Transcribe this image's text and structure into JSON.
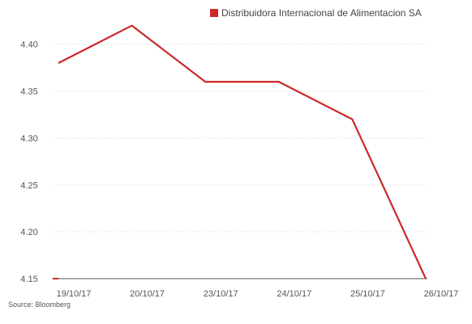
{
  "chart_data": {
    "type": "line",
    "categories": [
      "19/10/17",
      "20/10/17",
      "23/10/17",
      "24/10/17",
      "25/10/17",
      "26/10/17"
    ],
    "series": [
      {
        "name": "Distribuidora Internacional de Alimentacion SA",
        "values": [
          4.38,
          4.42,
          4.36,
          4.36,
          4.32,
          4.15
        ],
        "color": "#cc2929"
      }
    ],
    "y_ticks": [
      "4.15",
      "4.20",
      "4.25",
      "4.30",
      "4.35",
      "4.40"
    ],
    "ylim": [
      4.15,
      4.43
    ],
    "grid": "horizontal-dotted",
    "legend": "top-right"
  },
  "footer": {
    "source": "Source: Bloomberg"
  }
}
